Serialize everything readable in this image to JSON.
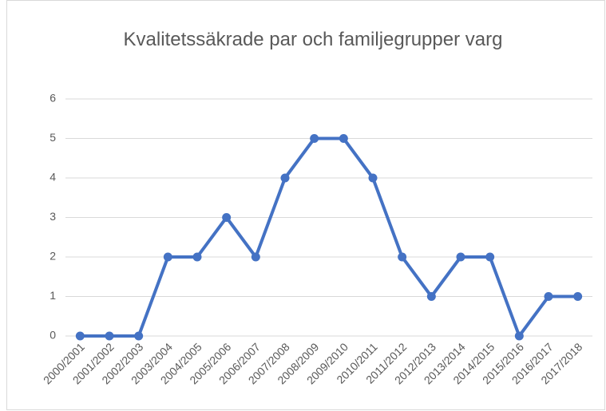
{
  "chart_data": {
    "type": "line",
    "title": "Kvalitetssäkrade par och familjegrupper varg",
    "categories": [
      "2000/2001",
      "2001/2002",
      "2002/2003",
      "2003/2004",
      "2004/2005",
      "2005/2006",
      "2006/2007",
      "2007/2008",
      "2008/2009",
      "2009/2010",
      "2010/2011",
      "2011/2012",
      "2012/2013",
      "2013/2014",
      "2014/2015",
      "2015/2016",
      "2016/2017",
      "2017/2018"
    ],
    "values": [
      0,
      0,
      0,
      2,
      2,
      3,
      2,
      4,
      5,
      5,
      4,
      2,
      1,
      2,
      2,
      0,
      1,
      1
    ],
    "color": "#4472c4",
    "ylim": [
      0,
      6
    ],
    "yticks": [
      0,
      1,
      2,
      3,
      4,
      5,
      6
    ],
    "grid": true
  }
}
